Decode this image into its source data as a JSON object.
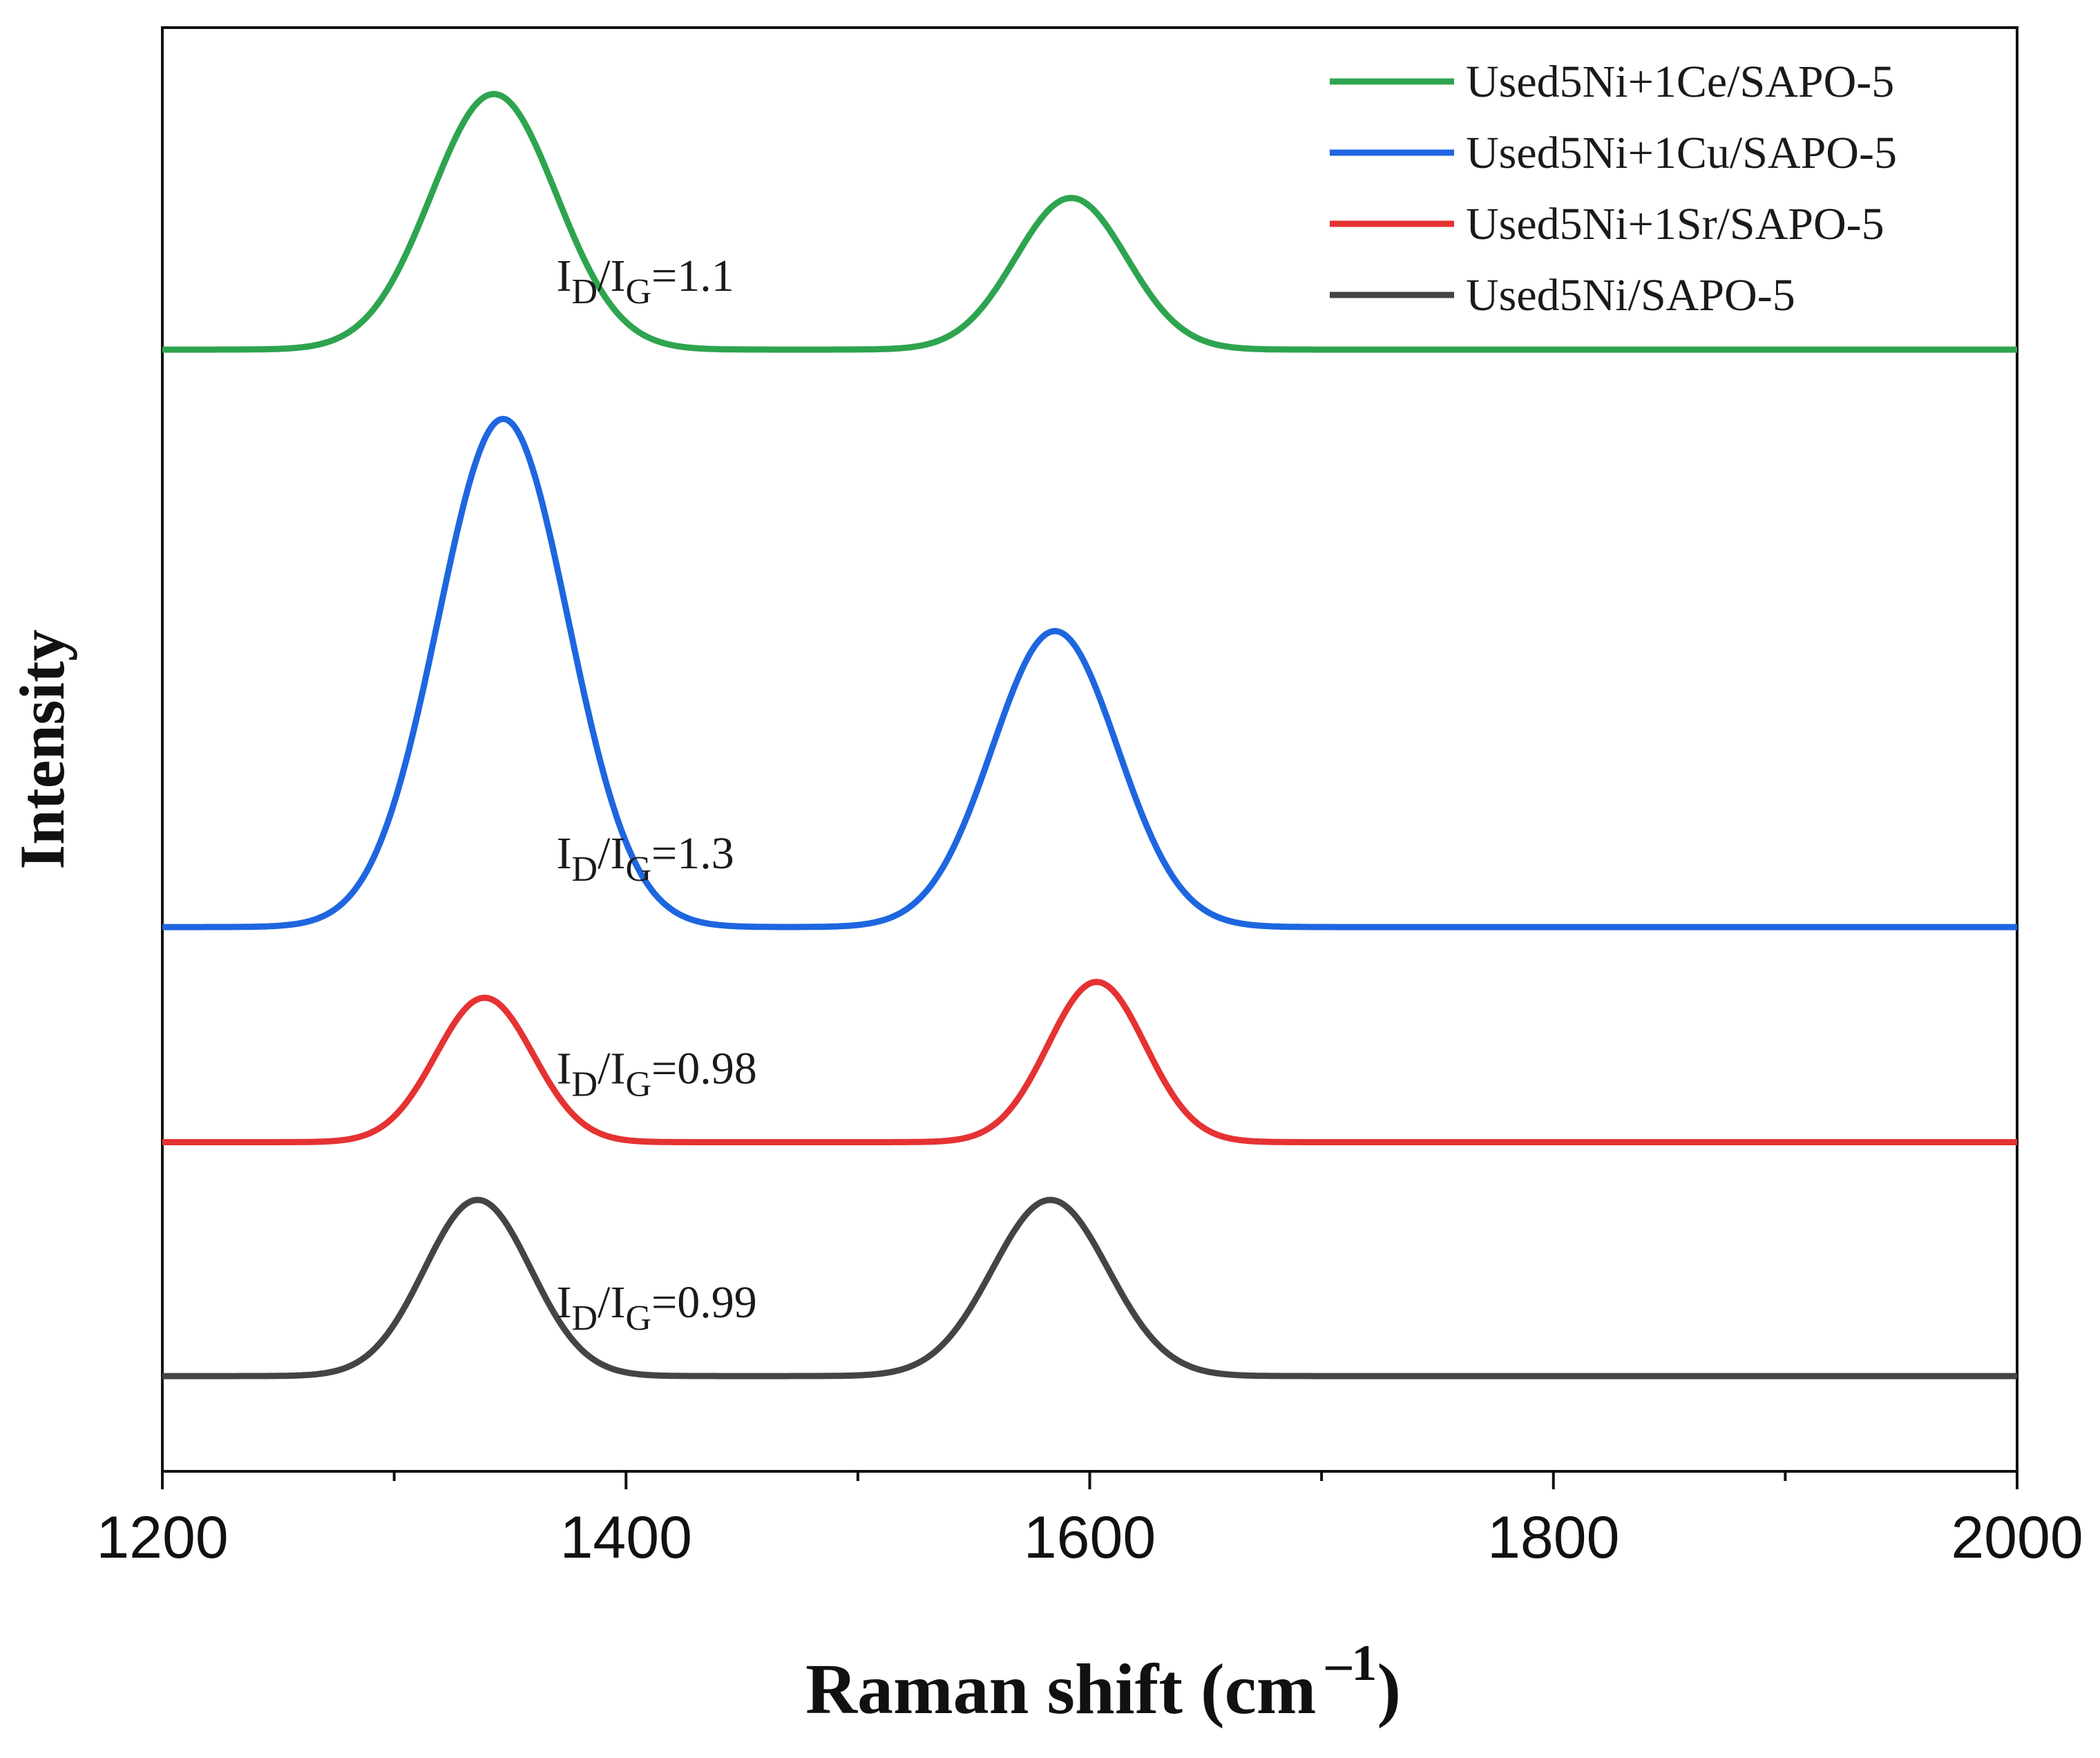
{
  "chart_data": {
    "type": "line",
    "title": "",
    "xlabel": "Raman shift (cm",
    "xlabel_sup": "–1",
    "xlabel_close": ")",
    "ylabel": "Intensity",
    "xlim": [
      1200,
      2000
    ],
    "ylim": [
      0,
      1
    ],
    "xticks": [
      "1200",
      "1400",
      "1600",
      "1800",
      "2000"
    ],
    "grid": false,
    "legend_position": "top-right",
    "series": [
      {
        "name": "Used5Ni+1Ce/SAPO-5",
        "color": "#2ea44f",
        "baseline": 0.777,
        "peaks": [
          {
            "x": 1343,
            "height": 0.177,
            "sigma": 27
          },
          {
            "x": 1592,
            "height": 0.105,
            "sigma": 24
          }
        ],
        "ratio_label": {
          "id": "I",
          "d": "D",
          "sep": "/I",
          "g": "G",
          "value": "=1.1"
        }
      },
      {
        "name": "Used5Ni+1Cu/SAPO-5",
        "color": "#1e66e0",
        "baseline": 0.377,
        "peaks": [
          {
            "x": 1347,
            "height": 0.352,
            "sigma": 28
          },
          {
            "x": 1585,
            "height": 0.205,
            "sigma": 27
          }
        ],
        "ratio_label": {
          "id": "I",
          "d": "D",
          "sep": "/I",
          "g": "G",
          "value": "=1.3"
        }
      },
      {
        "name": "Used5Ni+1Sr/SAPO-5",
        "color": "#e53232",
        "baseline": 0.228,
        "peaks": [
          {
            "x": 1339,
            "height": 0.1,
            "sigma": 21
          },
          {
            "x": 1603,
            "height": 0.111,
            "sigma": 21
          }
        ],
        "ratio_label": {
          "id": "I",
          "d": "D",
          "sep": "/I",
          "g": "G",
          "value": "=0.98"
        }
      },
      {
        "name": "Used5Ni/SAPO-5",
        "color": "#444444",
        "baseline": 0.066,
        "peaks": [
          {
            "x": 1336,
            "height": 0.122,
            "sigma": 23
          },
          {
            "x": 1583,
            "height": 0.122,
            "sigma": 25
          }
        ],
        "ratio_label": {
          "id": "I",
          "d": "D",
          "sep": "/I",
          "g": "G",
          "value": "=0.99"
        }
      }
    ]
  }
}
